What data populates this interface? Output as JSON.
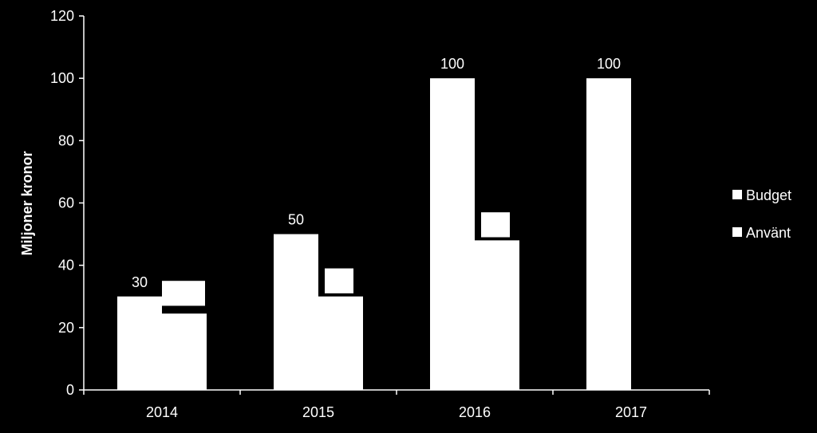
{
  "colors": {
    "background": "#000000",
    "foreground": "#ffffff",
    "bar": "#ffffff"
  },
  "chart_data": {
    "type": "bar",
    "categories": [
      "2014",
      "2015",
      "2016",
      "2017"
    ],
    "series": [
      {
        "name": "Budget",
        "values": [
          30,
          50,
          100,
          100
        ],
        "data_labels": [
          "30",
          "50",
          "100",
          "100"
        ]
      },
      {
        "name": "Använt",
        "values": [
          24.5,
          30,
          48,
          null
        ],
        "data_labels": [
          "",
          "",
          "",
          ""
        ]
      }
    ],
    "annotation_boxes": [
      {
        "category": "2014",
        "low": 27,
        "high": 35
      },
      {
        "category": "2015",
        "low": 31,
        "high": 39
      },
      {
        "category": "2016",
        "low": 49,
        "high": 57
      }
    ],
    "title": "",
    "xlabel": "",
    "ylabel": "Miljoner kronor",
    "ylim": [
      0,
      120
    ],
    "yticks": [
      "0",
      "20",
      "40",
      "60",
      "80",
      "100",
      "120"
    ],
    "grid": false,
    "legend_position": "right"
  }
}
